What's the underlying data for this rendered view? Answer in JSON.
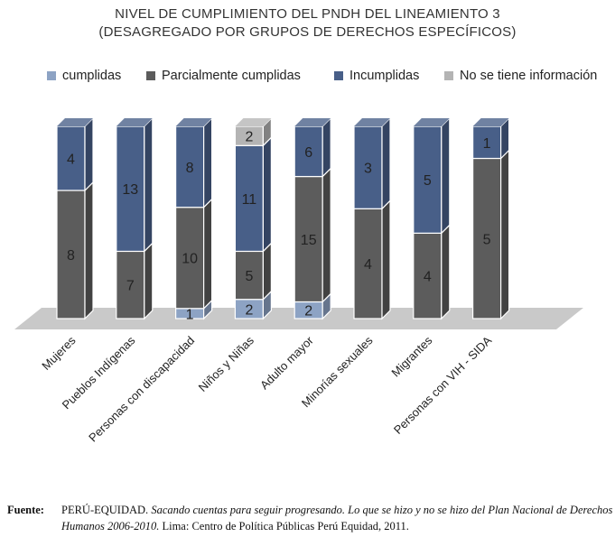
{
  "title_lines": [
    "NIVEL DE CUMPLIMIENTO DEL PNDH DEL LINEAMIENTO 3",
    "(DESAGREGADO POR GRUPOS DE DERECHOS ESPECÍFICOS)"
  ],
  "legend": [
    {
      "label": "cumplidas",
      "color": "#8da3c4"
    },
    {
      "label": "Parcialmente cumplidas",
      "color": "#5c5c5c"
    },
    {
      "label": "Incumplidas",
      "color": "#485f88"
    },
    {
      "label": "No se tiene información",
      "color": "#b4b4b4"
    }
  ],
  "chart_data": {
    "type": "bar",
    "stacked": true,
    "title": "NIVEL DE CUMPLIMIENTO DEL PNDH DEL LINEAMIENTO 3 (DESAGREGADO POR GRUPOS DE DERECHOS ESPECÍFICOS)",
    "legend_position": "top",
    "categories": [
      "Mujeres",
      "Pueblos Indígenas",
      "Personas con discapacidad",
      "Niños y Niñas",
      "Adulto mayor",
      "Minorías sexuales",
      "Migrantes",
      "Personas con VIH - SIDA"
    ],
    "series": [
      {
        "name": "cumplidas",
        "color": "#8da3c4",
        "values": [
          0,
          0,
          1,
          2,
          2,
          0,
          0,
          0
        ]
      },
      {
        "name": "Parcialmente cumplidas",
        "color": "#5c5c5c",
        "values": [
          8,
          7,
          10,
          5,
          15,
          4,
          4,
          5
        ]
      },
      {
        "name": "Incumplidas",
        "color": "#485f88",
        "values": [
          4,
          13,
          8,
          11,
          6,
          3,
          5,
          1
        ]
      },
      {
        "name": "No se tiene información",
        "color": "#b4b4b4",
        "values": [
          0,
          0,
          0,
          2,
          0,
          0,
          0,
          0
        ]
      }
    ],
    "normalized_100_percent": true
  },
  "source": {
    "label": "Fuente:",
    "author": "PERÚ-EQUIDAD.",
    "title_italic": "Sacando cuentas para seguir progresando. Lo que se hizo y no se hizo del Plan Nacional de Derechos Humanos 2006-2010.",
    "rest": "Lima: Centro de Política Públicas Perú Equidad, 2011."
  }
}
